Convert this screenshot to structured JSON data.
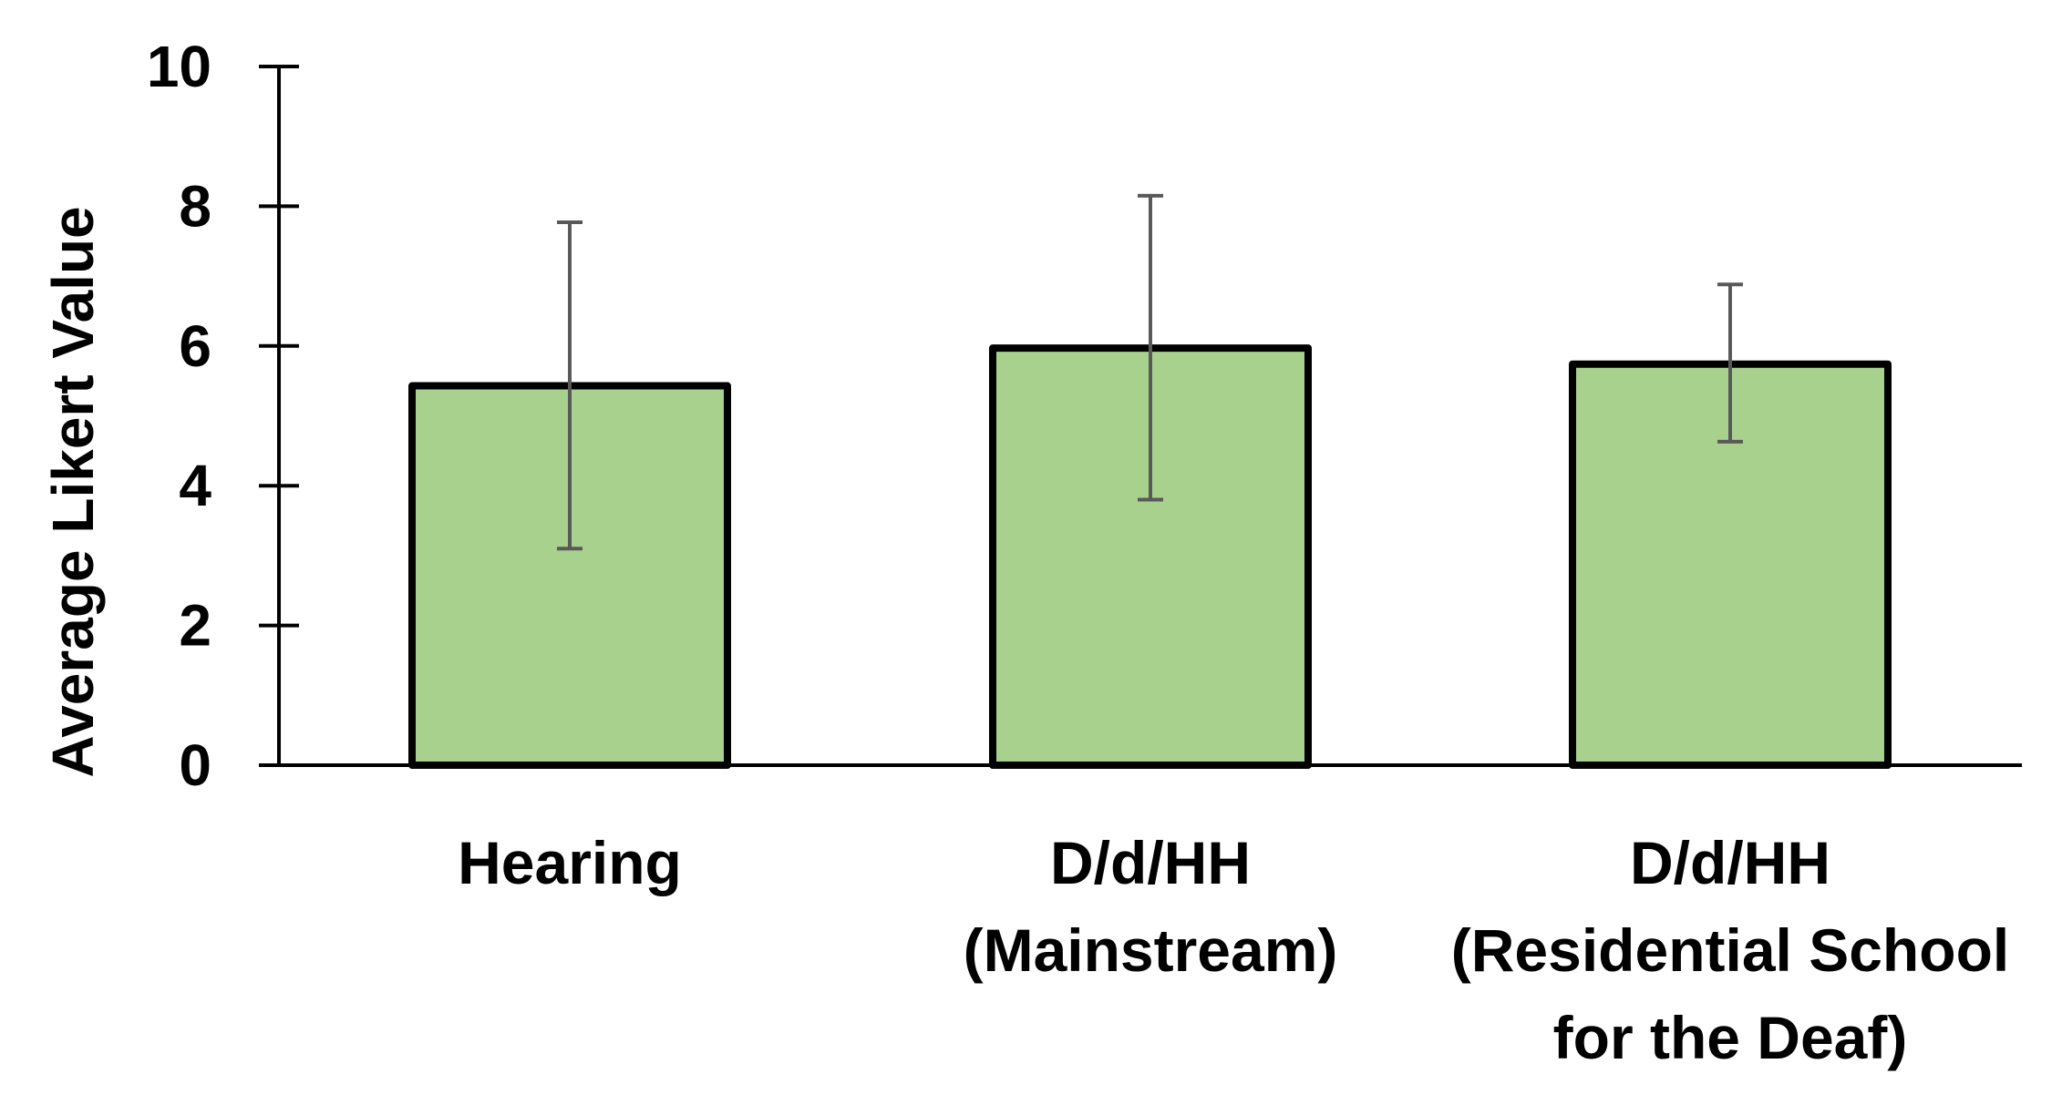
{
  "chart_data": {
    "type": "bar",
    "title": "",
    "xlabel": "",
    "ylabel": "Average Likert Value",
    "ylim": [
      0,
      10
    ],
    "yticks": [
      0,
      2,
      4,
      6,
      8,
      10
    ],
    "grid": false,
    "categories": [
      [
        "Hearing"
      ],
      [
        "D/d/HH",
        "(Mainstream)"
      ],
      [
        "D/d/HH",
        "(Residential School",
        "for the Deaf)"
      ]
    ],
    "values": [
      5.43,
      5.97,
      5.74
    ],
    "error_bars": [
      {
        "low": 3.1,
        "high": 7.77
      },
      {
        "low": 3.8,
        "high": 8.15
      },
      {
        "low": 4.63,
        "high": 6.88
      }
    ],
    "colors": {
      "bar_fill": "#a9d18e",
      "bar_stroke": "#000000",
      "axis": "#000000",
      "error_bar": "#595959"
    }
  }
}
